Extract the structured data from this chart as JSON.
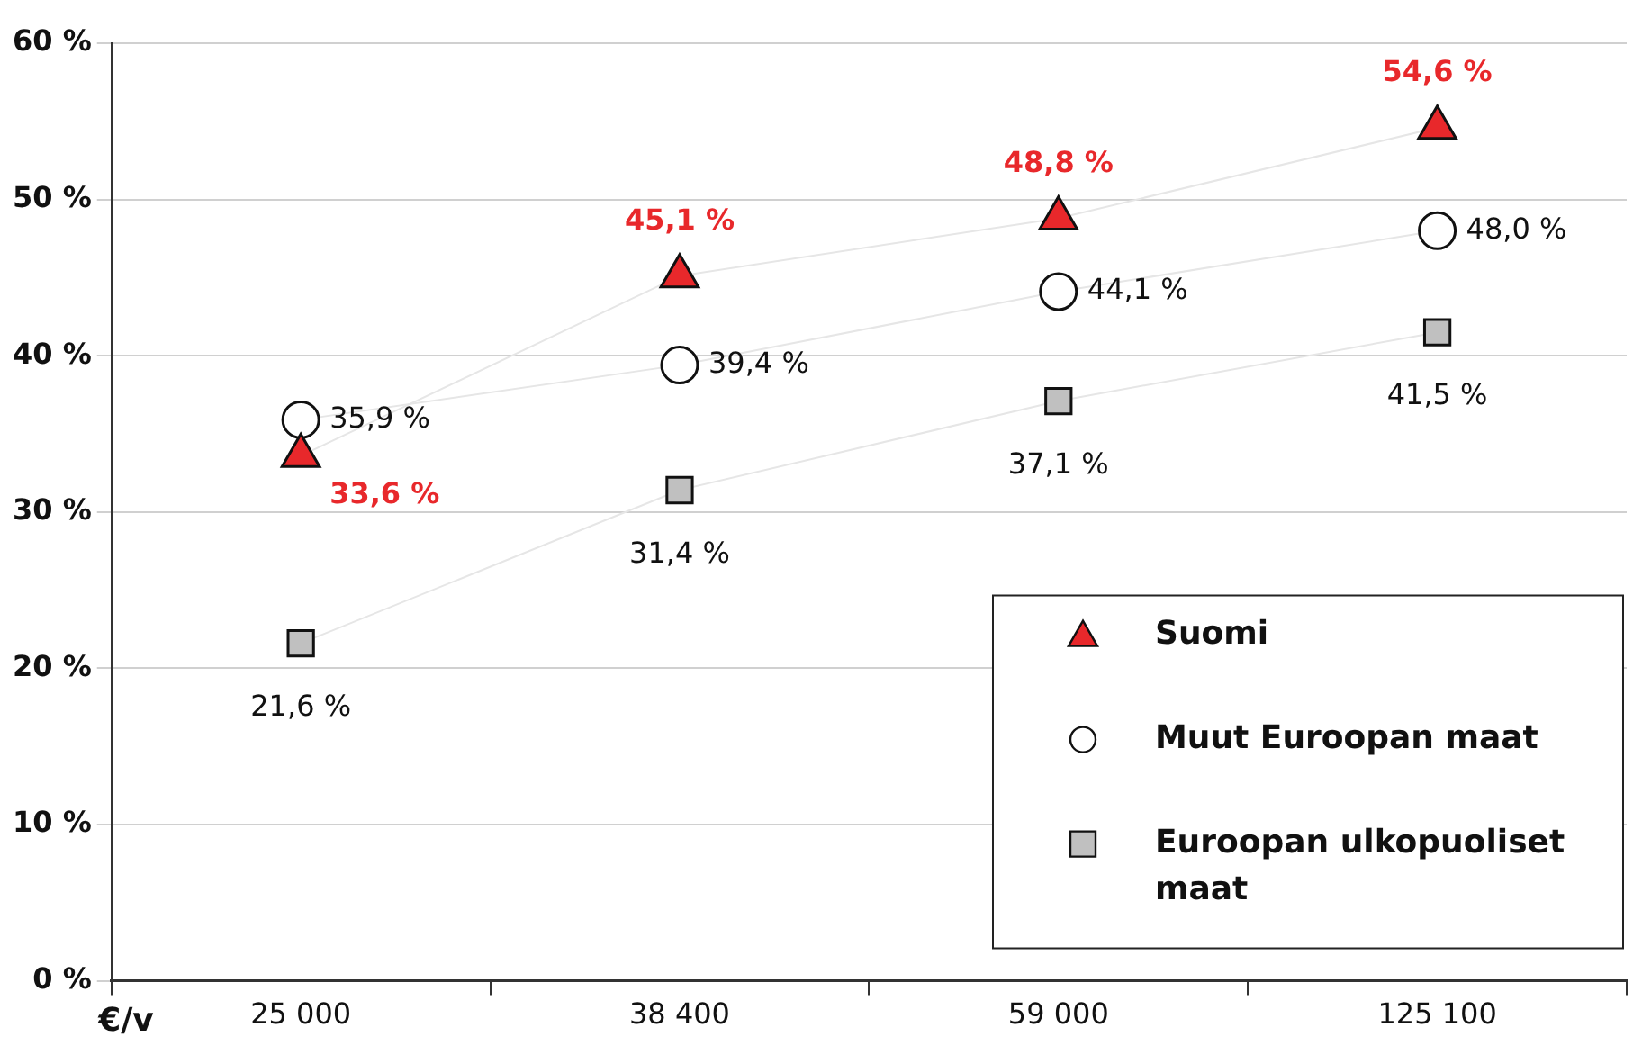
{
  "chart_data": {
    "type": "line",
    "xlabel": "€/v",
    "categories": [
      "25 000",
      "38 400",
      "59 000",
      "125 100"
    ],
    "series": [
      {
        "name": "Suomi",
        "color": "#e8282b",
        "marker": "triangle",
        "values": [
          33.6,
          45.1,
          48.8,
          54.6
        ],
        "value_labels": [
          "33,6 %",
          "45,1 %",
          "48,8 %",
          "54,6 %"
        ]
      },
      {
        "name": "Muut Euroopan maat",
        "color": "#ffffff",
        "marker": "circle",
        "values": [
          35.9,
          39.4,
          44.1,
          48.0
        ],
        "value_labels": [
          "35,9 %",
          "39,4 %",
          "44,1 %",
          "48,0 %"
        ]
      },
      {
        "name": "Euroopan ulkopuoliset maat",
        "color": "#c0c0c0",
        "marker": "square",
        "values": [
          21.6,
          31.4,
          37.1,
          41.5
        ],
        "value_labels": [
          "21,6 %",
          "31,4 %",
          "37,1 %",
          "41,5 %"
        ]
      }
    ],
    "ylim": [
      0,
      60
    ],
    "yticks": [
      {
        "value": 0,
        "label": "0 %"
      },
      {
        "value": 10,
        "label": "10 %"
      },
      {
        "value": 20,
        "label": "20 %"
      },
      {
        "value": 30,
        "label": "30 %"
      },
      {
        "value": 40,
        "label": "40 %"
      },
      {
        "value": 50,
        "label": "50 %"
      },
      {
        "value": 60,
        "label": "60 %"
      }
    ],
    "grid": "y",
    "legend": "bottom right"
  }
}
